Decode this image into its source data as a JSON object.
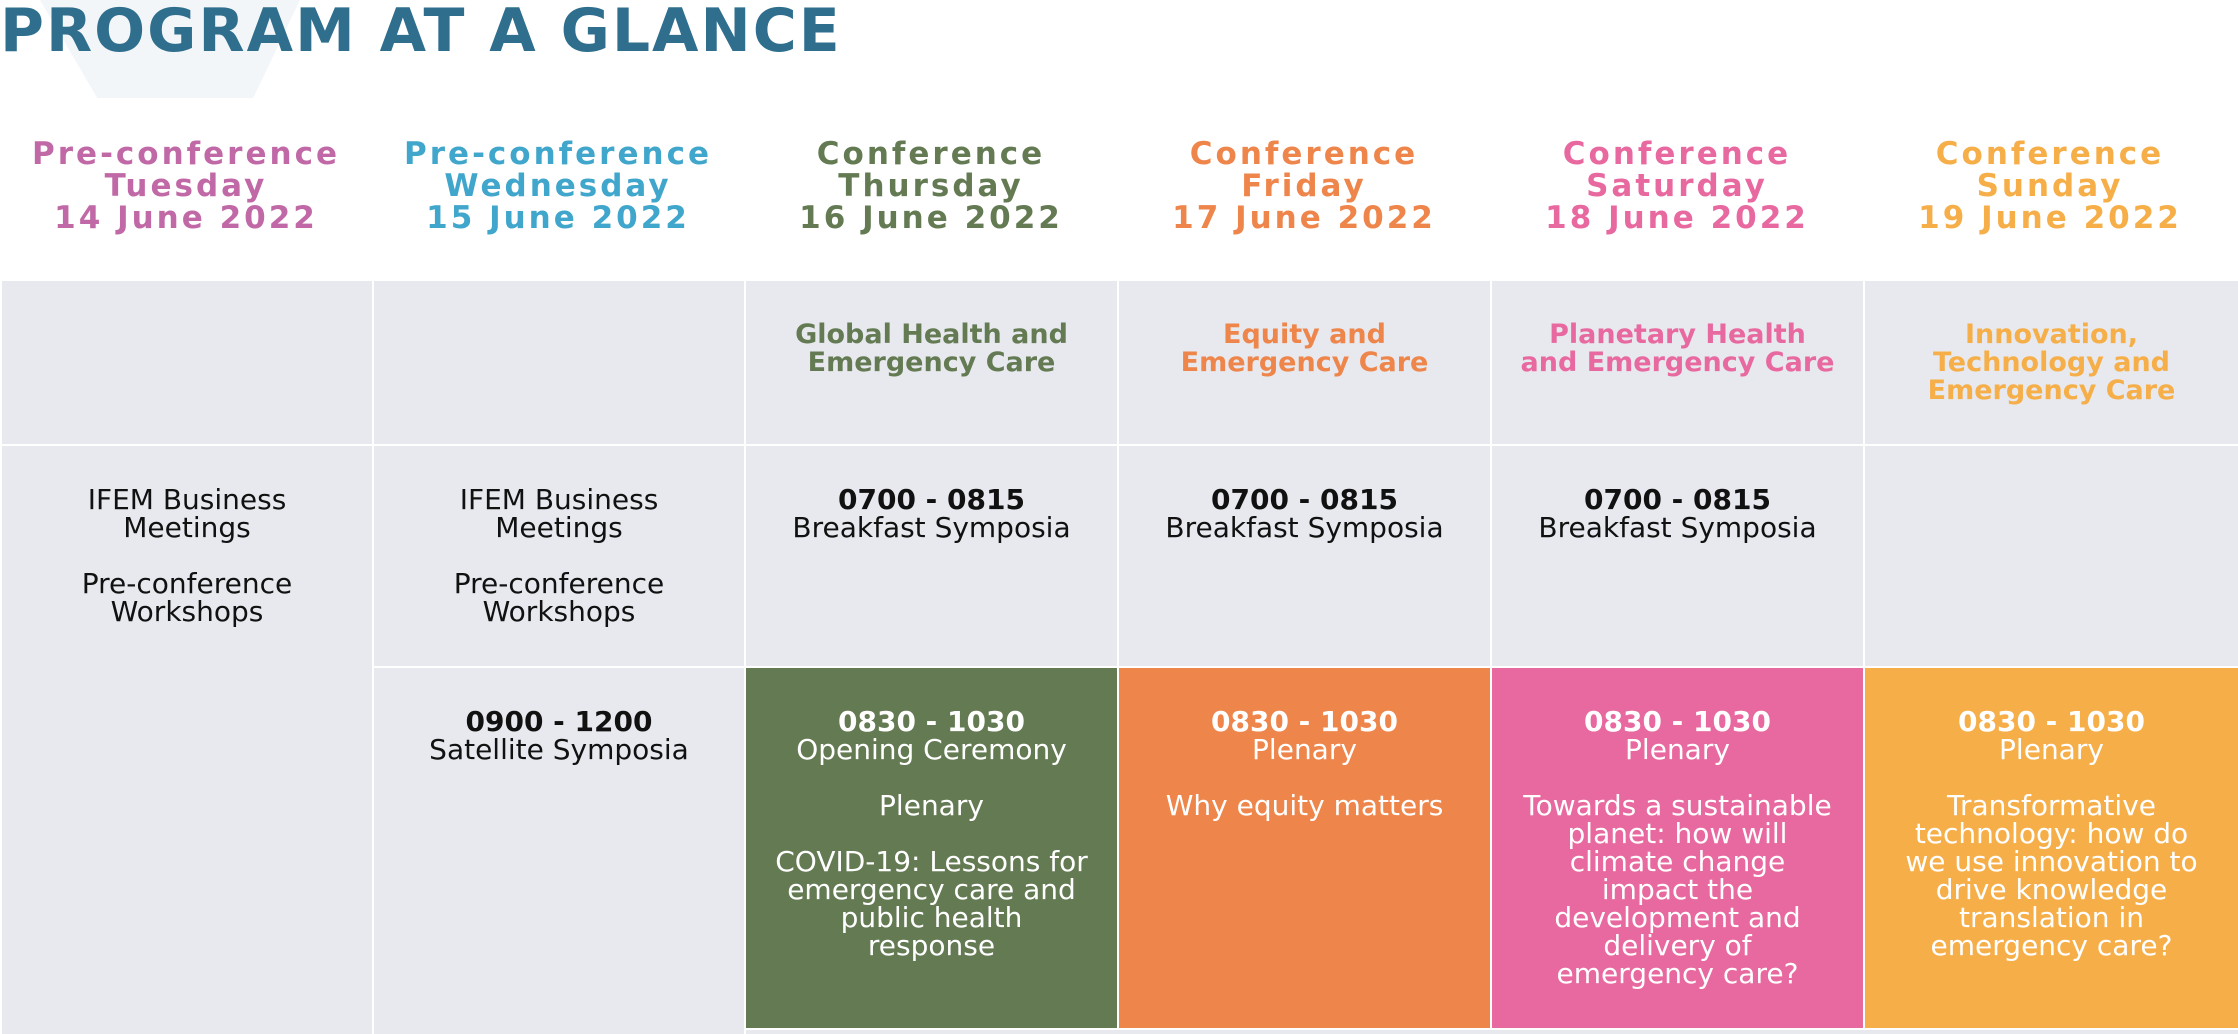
{
  "title": "PROGRAM AT A GLANCE",
  "days": [
    {
      "type": "Pre-conference",
      "weekday": "Tuesday",
      "date": "14 June 2022",
      "color": "#c168a6"
    },
    {
      "type": "Pre-conference",
      "weekday": "Wednesday",
      "date": "15 June 2022",
      "color": "#40a6cc"
    },
    {
      "type": "Conference",
      "weekday": "Thursday",
      "date": "16 June 2022",
      "color": "#637a52"
    },
    {
      "type": "Conference",
      "weekday": "Friday",
      "date": "17 June 2022",
      "color": "#ee854a"
    },
    {
      "type": "Conference",
      "weekday": "Saturday",
      "date": "18 June 2022",
      "color": "#e8699f"
    },
    {
      "type": "Conference",
      "weekday": "Sunday",
      "date": "19 June 2022",
      "color": "#f6ae48"
    }
  ],
  "themes": {
    "thursday": {
      "line1": "Global Health and",
      "line2": "Emergency Care"
    },
    "friday": {
      "line1": "Equity and",
      "line2": "Emergency Care"
    },
    "saturday": {
      "line1": "Planetary Health",
      "line2": "and Emergency Care"
    },
    "sunday": {
      "line1": "Innovation,",
      "line2": "Technology and",
      "line3": "Emergency Care"
    }
  },
  "tuesday": {
    "a1": "IFEM Business",
    "a2": "Meetings",
    "b1": "Pre-conference",
    "b2": "Workshops"
  },
  "wednesday": {
    "a1": "IFEM Business",
    "a2": "Meetings",
    "b1": "Pre-conference",
    "b2": "Workshops",
    "sat_time": "0900 - 1200",
    "sat_label": "Satellite Symposia"
  },
  "breakfast": {
    "time": "0700 - 0815",
    "label": "Breakfast Symposia"
  },
  "sessions": {
    "thursday": {
      "time": "0830 - 1030",
      "l1": "Opening Ceremony",
      "l2": "Plenary",
      "t1": "COVID-19: Lessons for",
      "t2": "emergency care and",
      "t3": "public health",
      "t4": "response"
    },
    "friday": {
      "time": "0830 - 1030",
      "l1": "Plenary",
      "t1": "Why equity matters"
    },
    "saturday": {
      "time": "0830 - 1030",
      "l1": "Plenary",
      "t1": "Towards a sustainable",
      "t2": "planet: how will",
      "t3": "climate change",
      "t4": "impact the",
      "t5": "development and",
      "t6": "delivery of",
      "t7": "emergency care?"
    },
    "sunday": {
      "time": "0830 - 1030",
      "l1": "Plenary",
      "t1": "Transformative",
      "t2": "technology: how do",
      "t3": "we use innovation to",
      "t4": "drive knowledge",
      "t5": "translation in",
      "t6": "emergency care?"
    }
  }
}
